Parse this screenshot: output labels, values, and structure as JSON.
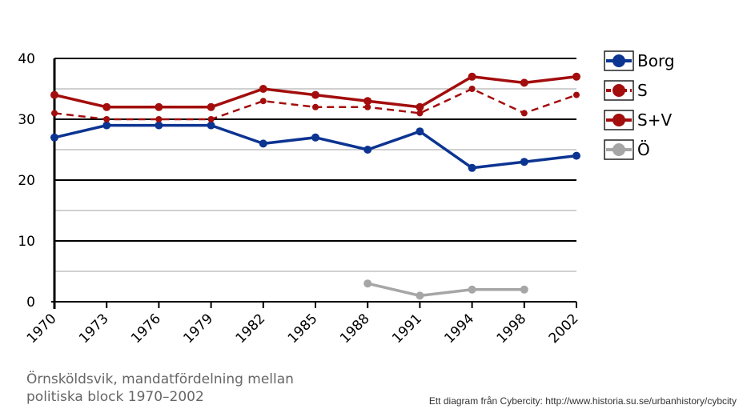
{
  "chart_data": {
    "type": "line",
    "categories": [
      "1970",
      "1973",
      "1976",
      "1979",
      "1982",
      "1985",
      "1988",
      "1991",
      "1994",
      "1998",
      "2002"
    ],
    "ylim": [
      0,
      40
    ],
    "y_ticks": [
      0,
      10,
      20,
      30,
      40
    ],
    "y_tick_labels": [
      "0",
      "10",
      "20",
      "30",
      "40"
    ],
    "minor_gridlines": [
      5,
      15,
      25,
      35
    ],
    "grid": true,
    "legend_position": "right",
    "series": [
      {
        "name": "Borg",
        "color": "#0c3491",
        "style": "solid",
        "values": [
          27,
          29,
          29,
          29,
          26,
          27,
          25,
          28,
          22,
          23,
          24
        ]
      },
      {
        "name": "S",
        "color": "#a30d0d",
        "style": "dashed",
        "values": [
          31,
          30,
          30,
          30,
          33,
          32,
          32,
          31,
          35,
          31,
          34
        ]
      },
      {
        "name": "S+V",
        "color": "#a30d0d",
        "style": "solid",
        "values": [
          34,
          32,
          32,
          32,
          35,
          34,
          33,
          32,
          37,
          36,
          37
        ]
      },
      {
        "name": "Ö",
        "color": "#a6a6a6",
        "style": "solid",
        "values": [
          null,
          null,
          null,
          null,
          null,
          null,
          3,
          1,
          2,
          2,
          null
        ]
      }
    ],
    "caption_lines": [
      "Örnsköldsvik, mandatfördelning mellan",
      "politiska block 1970–2002"
    ],
    "credit": "Ett diagram från Cybercity: http://www.historia.su.se/urbanhistory/cybcity"
  }
}
